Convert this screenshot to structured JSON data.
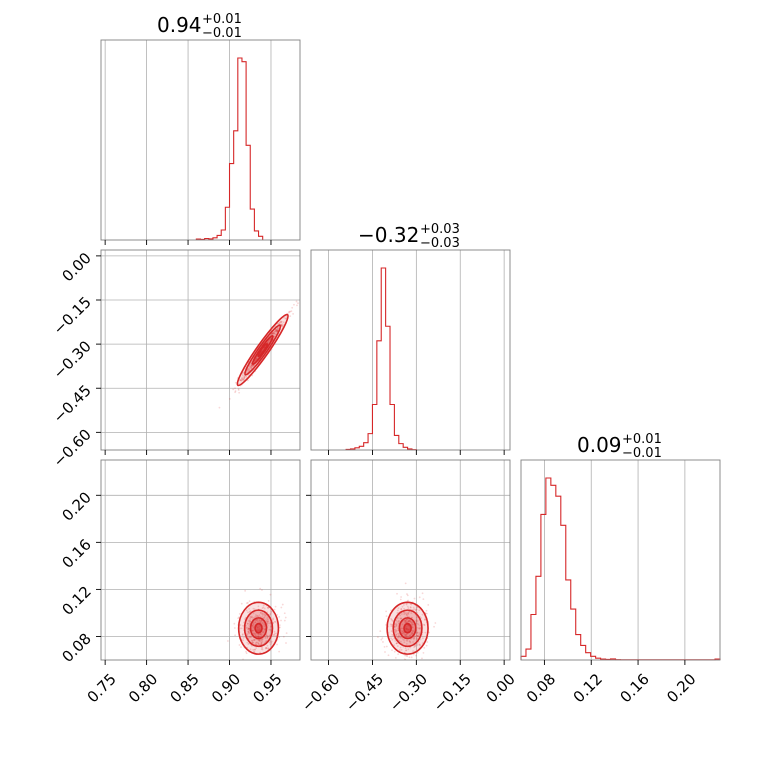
{
  "chart_data": {
    "type": "corner",
    "color": "#d62728",
    "grid": true,
    "parameters": [
      {
        "median": "0.94",
        "plus": "+0.01",
        "minus": "−0.01",
        "range": [
          0.745,
          0.985
        ],
        "ticks": [
          0.75,
          0.8,
          0.85,
          0.9,
          0.95
        ],
        "tick_labels": [
          "0.75",
          "0.80",
          "0.85",
          "0.90",
          "0.95"
        ]
      },
      {
        "median": "−0.32",
        "plus": "+0.03",
        "minus": "−0.03",
        "range": [
          -0.66,
          0.02
        ],
        "ticks": [
          -0.6,
          -0.45,
          -0.3,
          -0.15,
          0.0
        ],
        "tick_labels": [
          "−0.60",
          "−0.45",
          "−0.30",
          "−0.15",
          "0.00"
        ]
      },
      {
        "median": "0.09",
        "plus": "+0.01",
        "minus": "−0.01",
        "range": [
          0.06,
          0.23
        ],
        "ticks": [
          0.08,
          0.12,
          0.16,
          0.2
        ],
        "tick_labels": [
          "0.08",
          "0.12",
          "0.16",
          "0.20"
        ]
      }
    ],
    "histograms": [
      {
        "param": 0,
        "bin_width": 0.005,
        "start": 0.86,
        "counts": [
          0.5,
          0.3,
          0.8,
          0.6,
          1.2,
          2.5,
          5.5,
          18,
          42,
          60,
          100,
          98,
          52,
          17,
          5,
          2
        ]
      },
      {
        "param": 1,
        "bin_width": 0.015,
        "start": -0.54,
        "counts": [
          0.3,
          0.6,
          1.2,
          2,
          4,
          9,
          25,
          60,
          100,
          68,
          25,
          8,
          3.5,
          1.5,
          0.6,
          0.2
        ]
      },
      {
        "param": 2,
        "bin_width": 0.00425,
        "start": 0.06,
        "counts": [
          2,
          6,
          25,
          46,
          80,
          100,
          96,
          90,
          74,
          44,
          28,
          14,
          8,
          4,
          2,
          1,
          0.5,
          0.3,
          0.6,
          0.2,
          0.1,
          0.1,
          0.1,
          0.1,
          0.1,
          0.1,
          0.1,
          0.1,
          0.1,
          0.1,
          0.1,
          0.1,
          0.1,
          0.1,
          0.1,
          0.1,
          0.1,
          0.1,
          0.1,
          0.5
        ]
      }
    ],
    "scatter_panels": [
      {
        "x_param": 0,
        "y_param": 1,
        "center": [
          0.94,
          -0.32
        ],
        "spread": [
          0.015,
          0.06
        ],
        "correlation": 0.98
      },
      {
        "x_param": 0,
        "y_param": 2,
        "center": [
          0.935,
          0.087
        ],
        "spread": [
          0.012,
          0.011
        ],
        "correlation": 0.1
      },
      {
        "x_param": 1,
        "y_param": 2,
        "center": [
          -0.33,
          0.087
        ],
        "spread": [
          0.035,
          0.011
        ],
        "correlation": 0.1
      }
    ]
  }
}
